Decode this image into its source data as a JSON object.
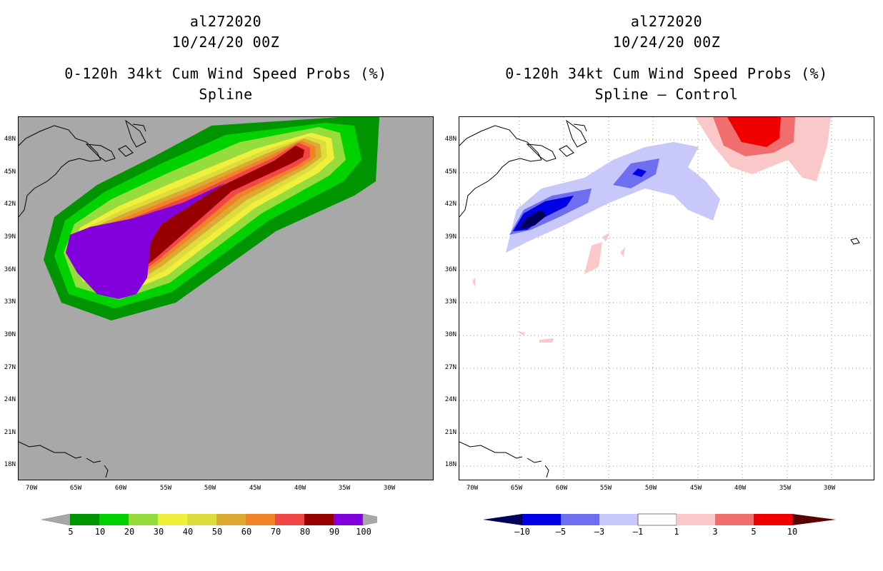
{
  "left_panel": {
    "storm_id": "al272020",
    "date": "10/24/20 00Z",
    "product": "0-120h 34kt Cum Wind Speed Probs (%)",
    "variant": "Spline",
    "legend": {
      "labels": [
        "5",
        "10",
        "20",
        "30",
        "40",
        "50",
        "60",
        "70",
        "80",
        "90",
        "100"
      ],
      "colors": [
        "#009400",
        "#00d200",
        "#96dc3c",
        "#f0f03c",
        "#dcdc3c",
        "#dcaa32",
        "#f08228",
        "#f04646",
        "#960000",
        "#8200dc"
      ],
      "below_color": "#a8a8a8",
      "above_color": "#a8a8a8"
    }
  },
  "right_panel": {
    "storm_id": "al272020",
    "date": "10/24/20 00Z",
    "product": "0-120h 34kt Cum Wind Speed Probs (%)",
    "variant": "Spline – Control",
    "legend": {
      "labels": [
        "–10",
        "–5",
        "–3",
        "–1",
        "1",
        "3",
        "5",
        "10"
      ],
      "colors": [
        "#0000e6",
        "#6e6ef0",
        "#c8c8fa",
        "#ffffff",
        "#fac8c8",
        "#f06e6e",
        "#f00000"
      ],
      "below_color": "#00005a",
      "above_color": "#5a0000"
    }
  },
  "axes": {
    "lat_ticks": [
      "48N",
      "45N",
      "42N",
      "39N",
      "36N",
      "33N",
      "30N",
      "27N",
      "24N",
      "21N",
      "18N"
    ],
    "lon_ticks": [
      "70W",
      "65W",
      "60W",
      "55W",
      "50W",
      "45W",
      "40W",
      "35W",
      "30W"
    ]
  },
  "colors": {
    "map_background": "#a8a8a8",
    "grid": "#9a9a9a"
  }
}
